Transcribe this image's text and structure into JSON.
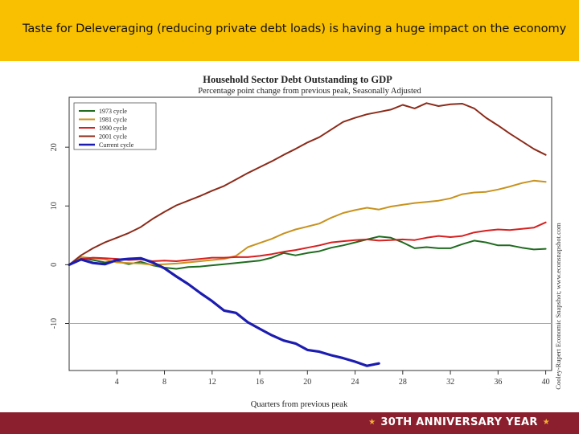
{
  "slide": {
    "title": "Taste for Deleveraging (reducing private debt loads) is having a huge impact on the economy",
    "footer": "30TH ANNIVERSARY YEAR",
    "colors": {
      "header": "#f8c000",
      "footer": "#8c1f2e",
      "star": "#f3b233"
    }
  },
  "chart_data": {
    "type": "line",
    "title": "Household Sector Debt Outstanding to GDP",
    "subtitle": "Percentage point change from previous peak, Seasonally Adjusted",
    "xlabel": "Quarters from previous peak",
    "ylabel": "",
    "credit": "Cooley-Rupert Economic Snapshot; www.econsnapshot.com",
    "xlim": [
      0,
      40.5
    ],
    "ylim": [
      -18,
      28.5
    ],
    "x_ticks": [
      "4",
      "8",
      "12",
      "16",
      "20",
      "24",
      "28",
      "32",
      "36",
      "40"
    ],
    "y_ticks": [
      "-10",
      "0",
      "10",
      "20"
    ],
    "reference_line": -10,
    "legend_position": "top-left",
    "series": [
      {
        "name": "1973 cycle",
        "color": "#1f6b1f",
        "x": [
          0,
          1,
          2,
          3,
          4,
          5,
          6,
          7,
          8,
          9,
          10,
          11,
          12,
          13,
          14,
          15,
          16,
          17,
          18,
          19,
          20,
          21,
          22,
          23,
          24,
          25,
          26,
          27,
          28,
          29,
          30,
          31,
          32,
          33,
          34,
          35,
          36,
          37,
          38,
          39,
          40
        ],
        "y": [
          0,
          1.2,
          0.8,
          0.4,
          0.6,
          0.1,
          0.5,
          -0.1,
          -0.5,
          -0.7,
          -0.4,
          -0.3,
          -0.1,
          0.1,
          0.3,
          0.5,
          0.7,
          1.2,
          2.0,
          1.6,
          2.0,
          2.3,
          2.9,
          3.3,
          3.8,
          4.3,
          4.8,
          4.6,
          3.8,
          2.8,
          3.0,
          2.8,
          2.8,
          3.5,
          4.1,
          3.8,
          3.3,
          3.3,
          2.9,
          2.6,
          2.7
        ]
      },
      {
        "name": "1981 cycle",
        "color": "#c8921e",
        "x": [
          0,
          1,
          2,
          3,
          4,
          5,
          6,
          7,
          8,
          9,
          10,
          11,
          12,
          13,
          14,
          15,
          16,
          17,
          18,
          19,
          20,
          21,
          22,
          23,
          24,
          25,
          26,
          27,
          28,
          29,
          30,
          31,
          32,
          33,
          34,
          35,
          36,
          37,
          38,
          39,
          40
        ],
        "y": [
          0,
          1.3,
          1.1,
          0.9,
          0.4,
          0.3,
          0.2,
          0.0,
          0.1,
          0.2,
          0.4,
          0.6,
          0.8,
          1.0,
          1.5,
          3.0,
          3.7,
          4.4,
          5.3,
          6.0,
          6.5,
          7.0,
          8.0,
          8.8,
          9.3,
          9.7,
          9.4,
          9.9,
          10.2,
          10.5,
          10.7,
          10.9,
          11.3,
          12.0,
          12.3,
          12.4,
          12.8,
          13.3,
          13.9,
          14.3,
          14.1
        ]
      },
      {
        "name": "1990 cycle",
        "color": "#d62020",
        "x": [
          0,
          1,
          2,
          3,
          4,
          5,
          6,
          7,
          8,
          9,
          10,
          11,
          12,
          13,
          14,
          15,
          16,
          17,
          18,
          19,
          20,
          21,
          22,
          23,
          24,
          25,
          26,
          27,
          28,
          29,
          30,
          31,
          32,
          33,
          34,
          35,
          36,
          37,
          38,
          39,
          40
        ],
        "y": [
          0,
          1.0,
          1.2,
          1.1,
          1.0,
          0.8,
          0.9,
          0.6,
          0.7,
          0.6,
          0.8,
          1.0,
          1.2,
          1.2,
          1.3,
          1.3,
          1.5,
          1.8,
          2.2,
          2.5,
          2.9,
          3.3,
          3.8,
          4.0,
          4.2,
          4.3,
          4.1,
          4.2,
          4.3,
          4.2,
          4.6,
          4.9,
          4.7,
          4.9,
          5.5,
          5.8,
          6.0,
          5.9,
          6.1,
          6.3,
          7.2
        ]
      },
      {
        "name": "2001 cycle",
        "color": "#8b2b1a",
        "x": [
          0,
          1,
          2,
          3,
          4,
          5,
          6,
          7,
          8,
          9,
          10,
          11,
          12,
          13,
          14,
          15,
          16,
          17,
          18,
          19,
          20,
          21,
          22,
          23,
          24,
          25,
          26,
          27,
          28,
          29,
          30,
          31,
          32,
          33,
          34,
          35,
          36,
          37,
          38,
          39,
          40
        ],
        "y": [
          0,
          1.6,
          2.8,
          3.8,
          4.6,
          5.4,
          6.4,
          7.8,
          9.0,
          10.1,
          10.9,
          11.7,
          12.6,
          13.4,
          14.5,
          15.6,
          16.6,
          17.6,
          18.7,
          19.7,
          20.8,
          21.7,
          23.0,
          24.3,
          25.0,
          25.6,
          26.0,
          26.4,
          27.2,
          26.6,
          27.5,
          27.0,
          27.3,
          27.4,
          26.6,
          25.0,
          23.7,
          22.3,
          21.0,
          19.7,
          18.7
        ]
      },
      {
        "name": "Current cycle",
        "color": "#1c1cb0",
        "x": [
          0,
          1,
          2,
          3,
          4,
          5,
          6,
          7,
          8,
          9,
          10,
          11,
          12,
          13,
          14,
          15,
          16,
          17,
          18,
          19,
          20,
          21,
          22,
          23,
          24,
          25,
          26
        ],
        "y": [
          0,
          0.9,
          0.3,
          0.1,
          0.8,
          1.0,
          1.1,
          0.4,
          -0.6,
          -2.0,
          -3.3,
          -4.8,
          -6.2,
          -7.8,
          -8.2,
          -9.8,
          -10.9,
          -12.0,
          -12.9,
          -13.4,
          -14.5,
          -14.8,
          -15.4,
          -15.9,
          -16.5,
          -17.2,
          -16.8
        ]
      }
    ]
  }
}
